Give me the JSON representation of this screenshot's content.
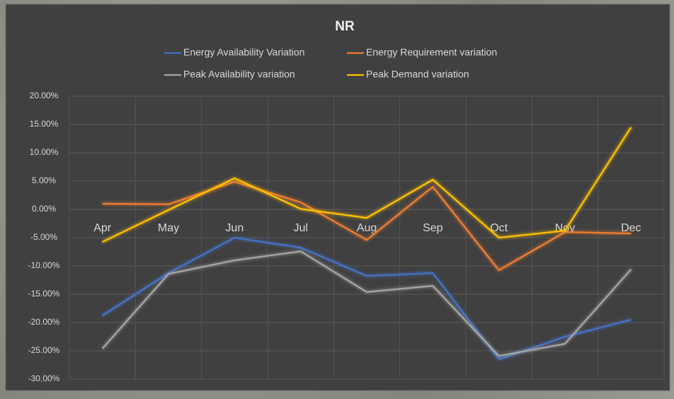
{
  "chart_data": {
    "type": "line",
    "title": "NR",
    "categories": [
      "Apr",
      "May",
      "Jun",
      "Jul",
      "Aug",
      "Sep",
      "Oct",
      "Nov",
      "Dec"
    ],
    "series": [
      {
        "name": "Energy Availability Variation",
        "color": "#4472c4",
        "values": [
          -18.75,
          -11.25,
          -5,
          -6.75,
          -11.75,
          -11.25,
          -26.5,
          -22.5,
          -19.5
        ]
      },
      {
        "name": "Energy Requirement variation",
        "color": "#ed7d31",
        "values": [
          1,
          0.9,
          4.9,
          1.25,
          -5.4,
          4,
          -10.75,
          -4,
          -4.25
        ]
      },
      {
        "name": "Peak Availability variation",
        "color": "#a5a5a5",
        "values": [
          -24.6,
          -11.4,
          -9,
          -7.4,
          -14.6,
          -13.5,
          -25.9,
          -23.75,
          -10.6
        ]
      },
      {
        "name": "Peak Demand variation",
        "color": "#ffc000",
        "values": [
          -5.75,
          -0.1,
          5.5,
          0.1,
          -1.5,
          5.25,
          -5,
          -3.75,
          14.5
        ]
      }
    ],
    "ylim": [
      -30,
      20
    ],
    "yticks": [
      {
        "value": -30,
        "label": "-30.00%"
      },
      {
        "value": -25,
        "label": "-25.00%"
      },
      {
        "value": -20,
        "label": "-20.00%"
      },
      {
        "value": -15,
        "label": "-15.00%"
      },
      {
        "value": -10,
        "label": "-10.00%"
      },
      {
        "value": -5,
        "label": "-5.00%"
      },
      {
        "value": 0,
        "label": "0.00%"
      },
      {
        "value": 5,
        "label": "5.00%"
      },
      {
        "value": 10,
        "label": "10.00%"
      },
      {
        "value": 15,
        "label": "15.00%"
      },
      {
        "value": 20,
        "label": "20.00%"
      }
    ],
    "grid": true,
    "legend": "top"
  }
}
